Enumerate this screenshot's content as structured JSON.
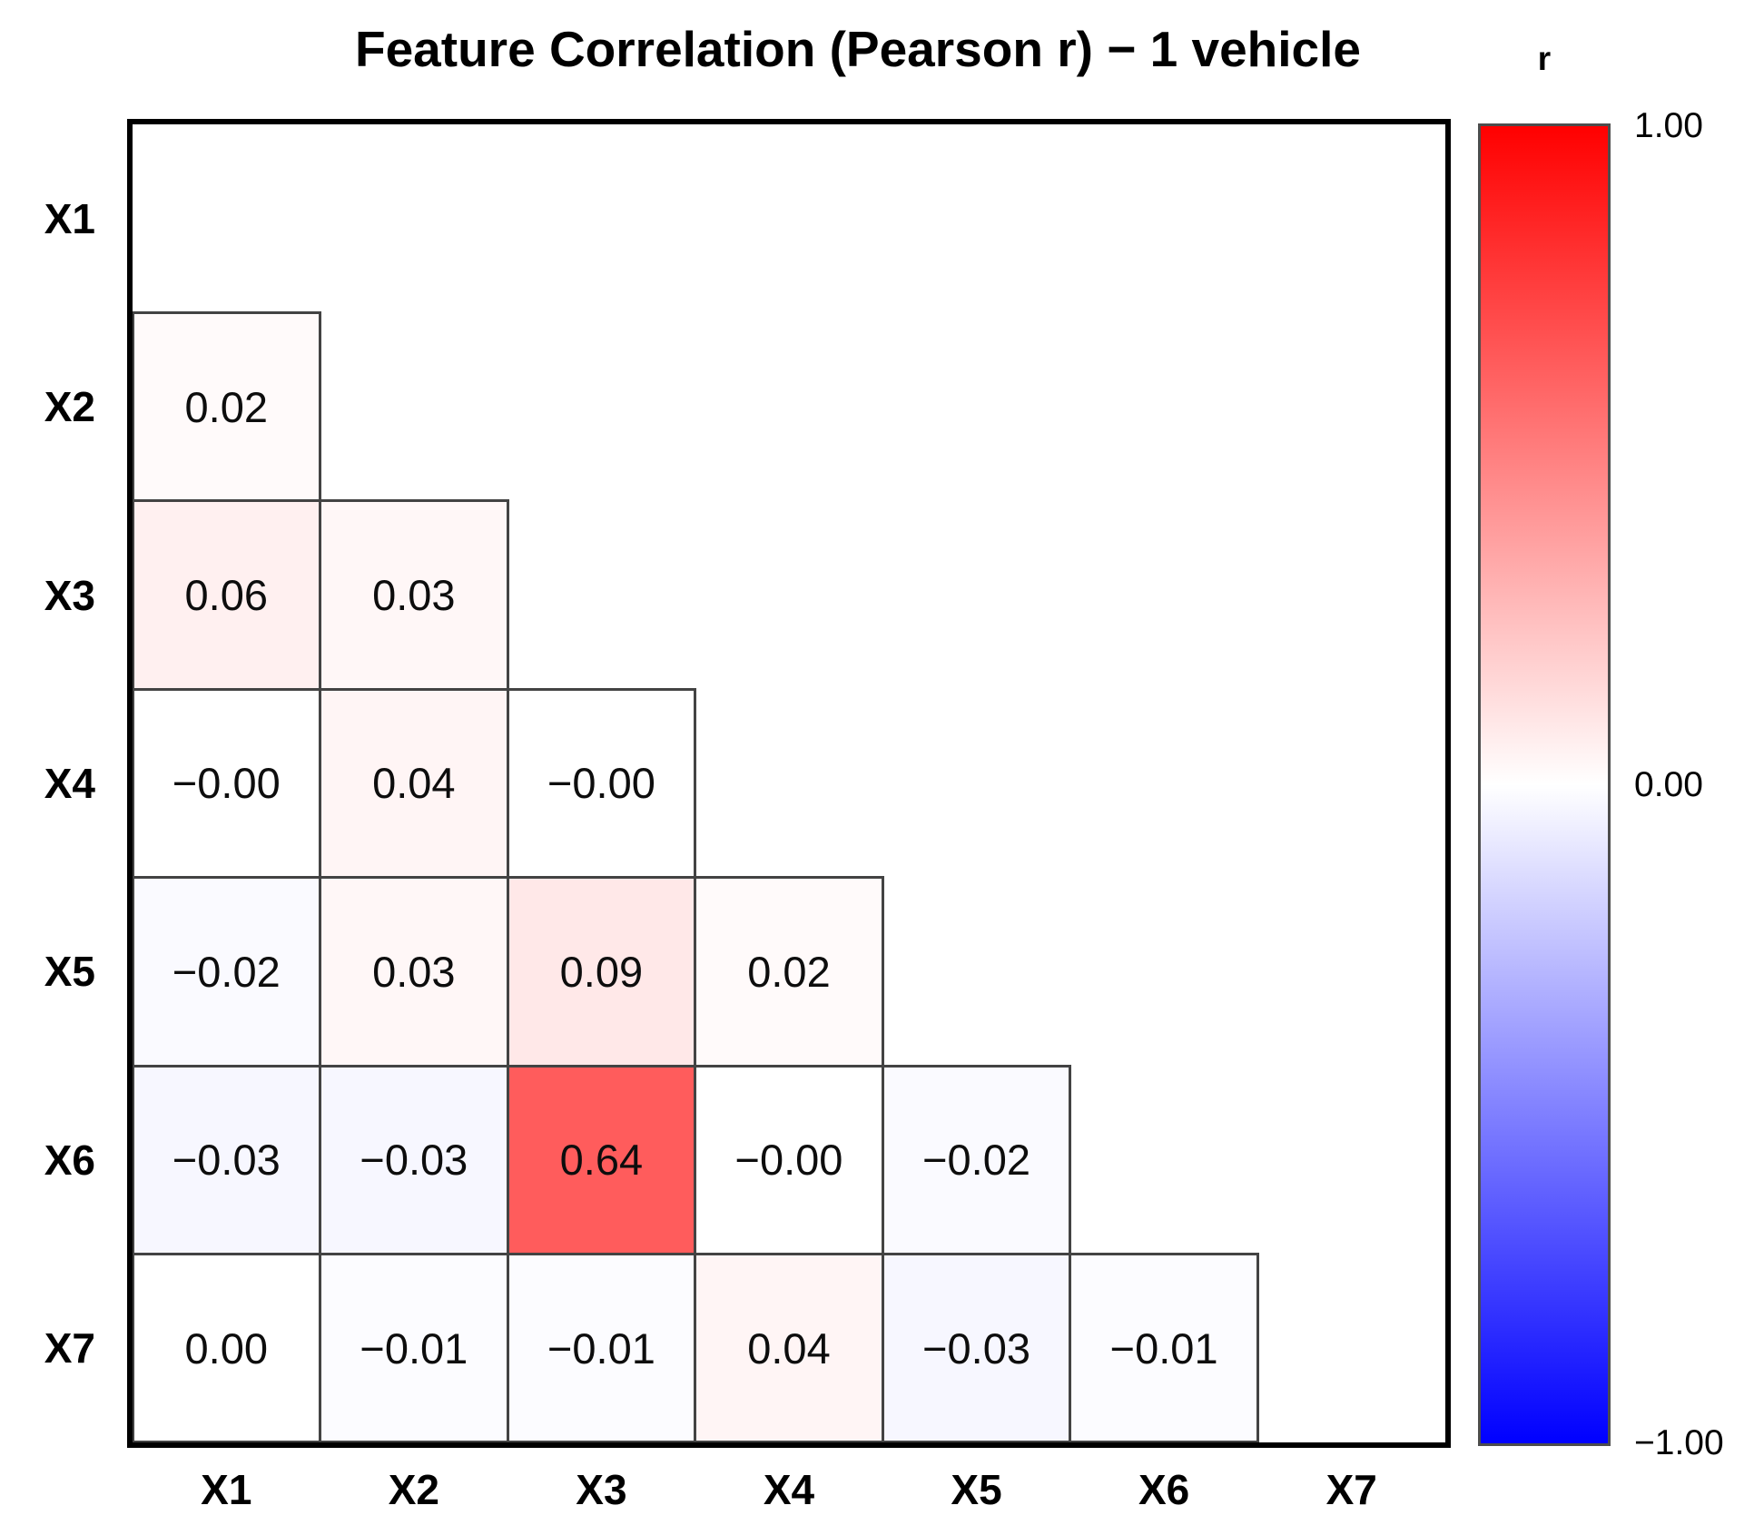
{
  "chart_data": {
    "type": "heatmap",
    "title": "Feature Correlation (Pearson r) − 1 vehicle",
    "subtitle": "",
    "xlabel": "",
    "ylabel": "",
    "categories": [
      "X1",
      "X2",
      "X3",
      "X4",
      "X5",
      "X6",
      "X7"
    ],
    "shape": "lower-triangle-excluding-diagonal",
    "value_range": [
      -1,
      1
    ],
    "grid": "off",
    "colormap": {
      "name": "blue-white-red",
      "min_color": "#0000FF",
      "mid_color": "#FFFFFF",
      "max_color": "#FF0000"
    },
    "colorbar": {
      "label": "r",
      "position": "right",
      "ticks": [
        {
          "label": "1.00",
          "value": 1.0
        },
        {
          "label": "0.00",
          "value": 0.0
        },
        {
          "label": "−1.00",
          "value": -1.0
        }
      ]
    },
    "cells": [
      {
        "row": "X2",
        "col": "X1",
        "value": 0.02,
        "label": "0.02",
        "color": "#FFFAFA"
      },
      {
        "row": "X3",
        "col": "X1",
        "value": 0.06,
        "label": "0.06",
        "color": "#FFF0F0"
      },
      {
        "row": "X3",
        "col": "X2",
        "value": 0.03,
        "label": "0.03",
        "color": "#FFF7F7"
      },
      {
        "row": "X4",
        "col": "X1",
        "value": -0.0,
        "label": "−0.00",
        "color": "#FFFFFF"
      },
      {
        "row": "X4",
        "col": "X2",
        "value": 0.04,
        "label": "0.04",
        "color": "#FFF5F5"
      },
      {
        "row": "X4",
        "col": "X3",
        "value": -0.0,
        "label": "−0.00",
        "color": "#FFFFFF"
      },
      {
        "row": "X5",
        "col": "X1",
        "value": -0.02,
        "label": "−0.02",
        "color": "#FAFAFF"
      },
      {
        "row": "X5",
        "col": "X2",
        "value": 0.03,
        "label": "0.03",
        "color": "#FFF7F7"
      },
      {
        "row": "X5",
        "col": "X3",
        "value": 0.09,
        "label": "0.09",
        "color": "#FFE8E8"
      },
      {
        "row": "X5",
        "col": "X4",
        "value": 0.02,
        "label": "0.02",
        "color": "#FFFAFA"
      },
      {
        "row": "X6",
        "col": "X1",
        "value": -0.03,
        "label": "−0.03",
        "color": "#F7F7FF"
      },
      {
        "row": "X6",
        "col": "X2",
        "value": -0.03,
        "label": "−0.03",
        "color": "#F7F7FF"
      },
      {
        "row": "X6",
        "col": "X3",
        "value": 0.64,
        "label": "0.64",
        "color": "#FF5C5C"
      },
      {
        "row": "X6",
        "col": "X4",
        "value": -0.0,
        "label": "−0.00",
        "color": "#FFFFFF"
      },
      {
        "row": "X6",
        "col": "X5",
        "value": -0.02,
        "label": "−0.02",
        "color": "#FAFAFF"
      },
      {
        "row": "X7",
        "col": "X1",
        "value": 0.0,
        "label": "0.00",
        "color": "#FFFFFF"
      },
      {
        "row": "X7",
        "col": "X2",
        "value": -0.01,
        "label": "−0.01",
        "color": "#FCFCFF"
      },
      {
        "row": "X7",
        "col": "X3",
        "value": -0.01,
        "label": "−0.01",
        "color": "#FCFCFF"
      },
      {
        "row": "X7",
        "col": "X4",
        "value": 0.04,
        "label": "0.04",
        "color": "#FFF5F5"
      },
      {
        "row": "X7",
        "col": "X5",
        "value": -0.03,
        "label": "−0.03",
        "color": "#F7F7FF"
      },
      {
        "row": "X7",
        "col": "X6",
        "value": -0.01,
        "label": "−0.01",
        "color": "#FCFCFF"
      }
    ]
  }
}
